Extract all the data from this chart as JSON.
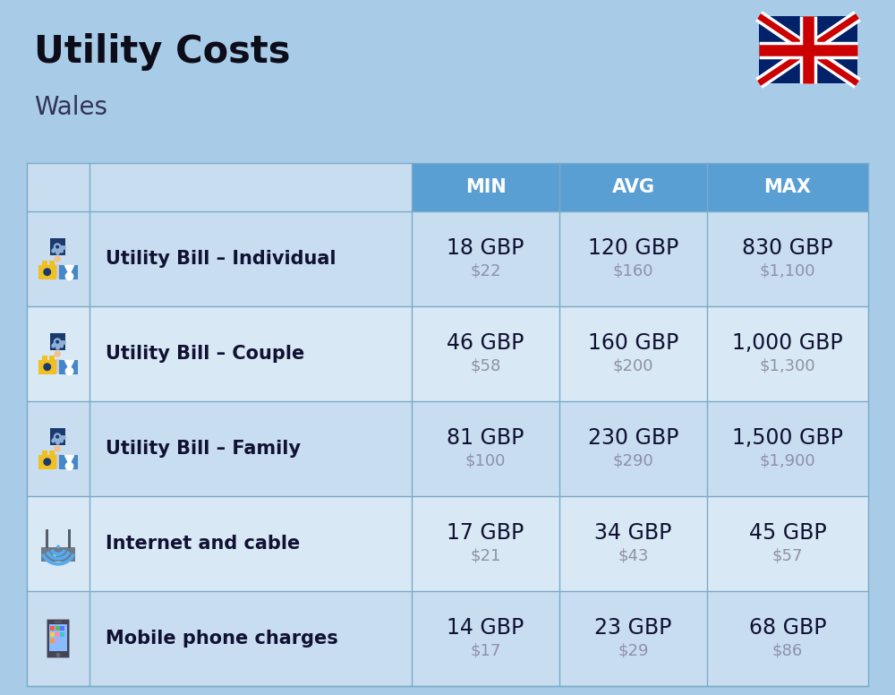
{
  "title": "Utility Costs",
  "subtitle": "Wales",
  "background_color": "#a8cce8",
  "header_bg_color": "#5a9fd4",
  "row_bg_color_odd": "#c8ddf0",
  "row_bg_color_even": "#d8e8f4",
  "header_text_color": "#ffffff",
  "label_text_color": "#111133",
  "value_text_color": "#111133",
  "usd_text_color": "#9090a8",
  "col_headers": [
    "MIN",
    "AVG",
    "MAX"
  ],
  "rows": [
    {
      "label": "Utility Bill – Individual",
      "icon": "utility",
      "min_gbp": "18 GBP",
      "min_usd": "$22",
      "avg_gbp": "120 GBP",
      "avg_usd": "$160",
      "max_gbp": "830 GBP",
      "max_usd": "$1,100"
    },
    {
      "label": "Utility Bill – Couple",
      "icon": "utility",
      "min_gbp": "46 GBP",
      "min_usd": "$58",
      "avg_gbp": "160 GBP",
      "avg_usd": "$200",
      "max_gbp": "1,000 GBP",
      "max_usd": "$1,300"
    },
    {
      "label": "Utility Bill – Family",
      "icon": "utility",
      "min_gbp": "81 GBP",
      "min_usd": "$100",
      "avg_gbp": "230 GBP",
      "avg_usd": "$290",
      "max_gbp": "1,500 GBP",
      "max_usd": "$1,900"
    },
    {
      "label": "Internet and cable",
      "icon": "internet",
      "min_gbp": "17 GBP",
      "min_usd": "$21",
      "avg_gbp": "34 GBP",
      "avg_usd": "$43",
      "max_gbp": "45 GBP",
      "max_usd": "$57"
    },
    {
      "label": "Mobile phone charges",
      "icon": "mobile",
      "min_gbp": "14 GBP",
      "min_usd": "$17",
      "avg_gbp": "23 GBP",
      "avg_usd": "$29",
      "max_gbp": "68 GBP",
      "max_usd": "$86"
    }
  ],
  "title_fontsize": 30,
  "subtitle_fontsize": 20,
  "header_fontsize": 15,
  "label_fontsize": 15,
  "value_fontsize": 17,
  "usd_fontsize": 13
}
